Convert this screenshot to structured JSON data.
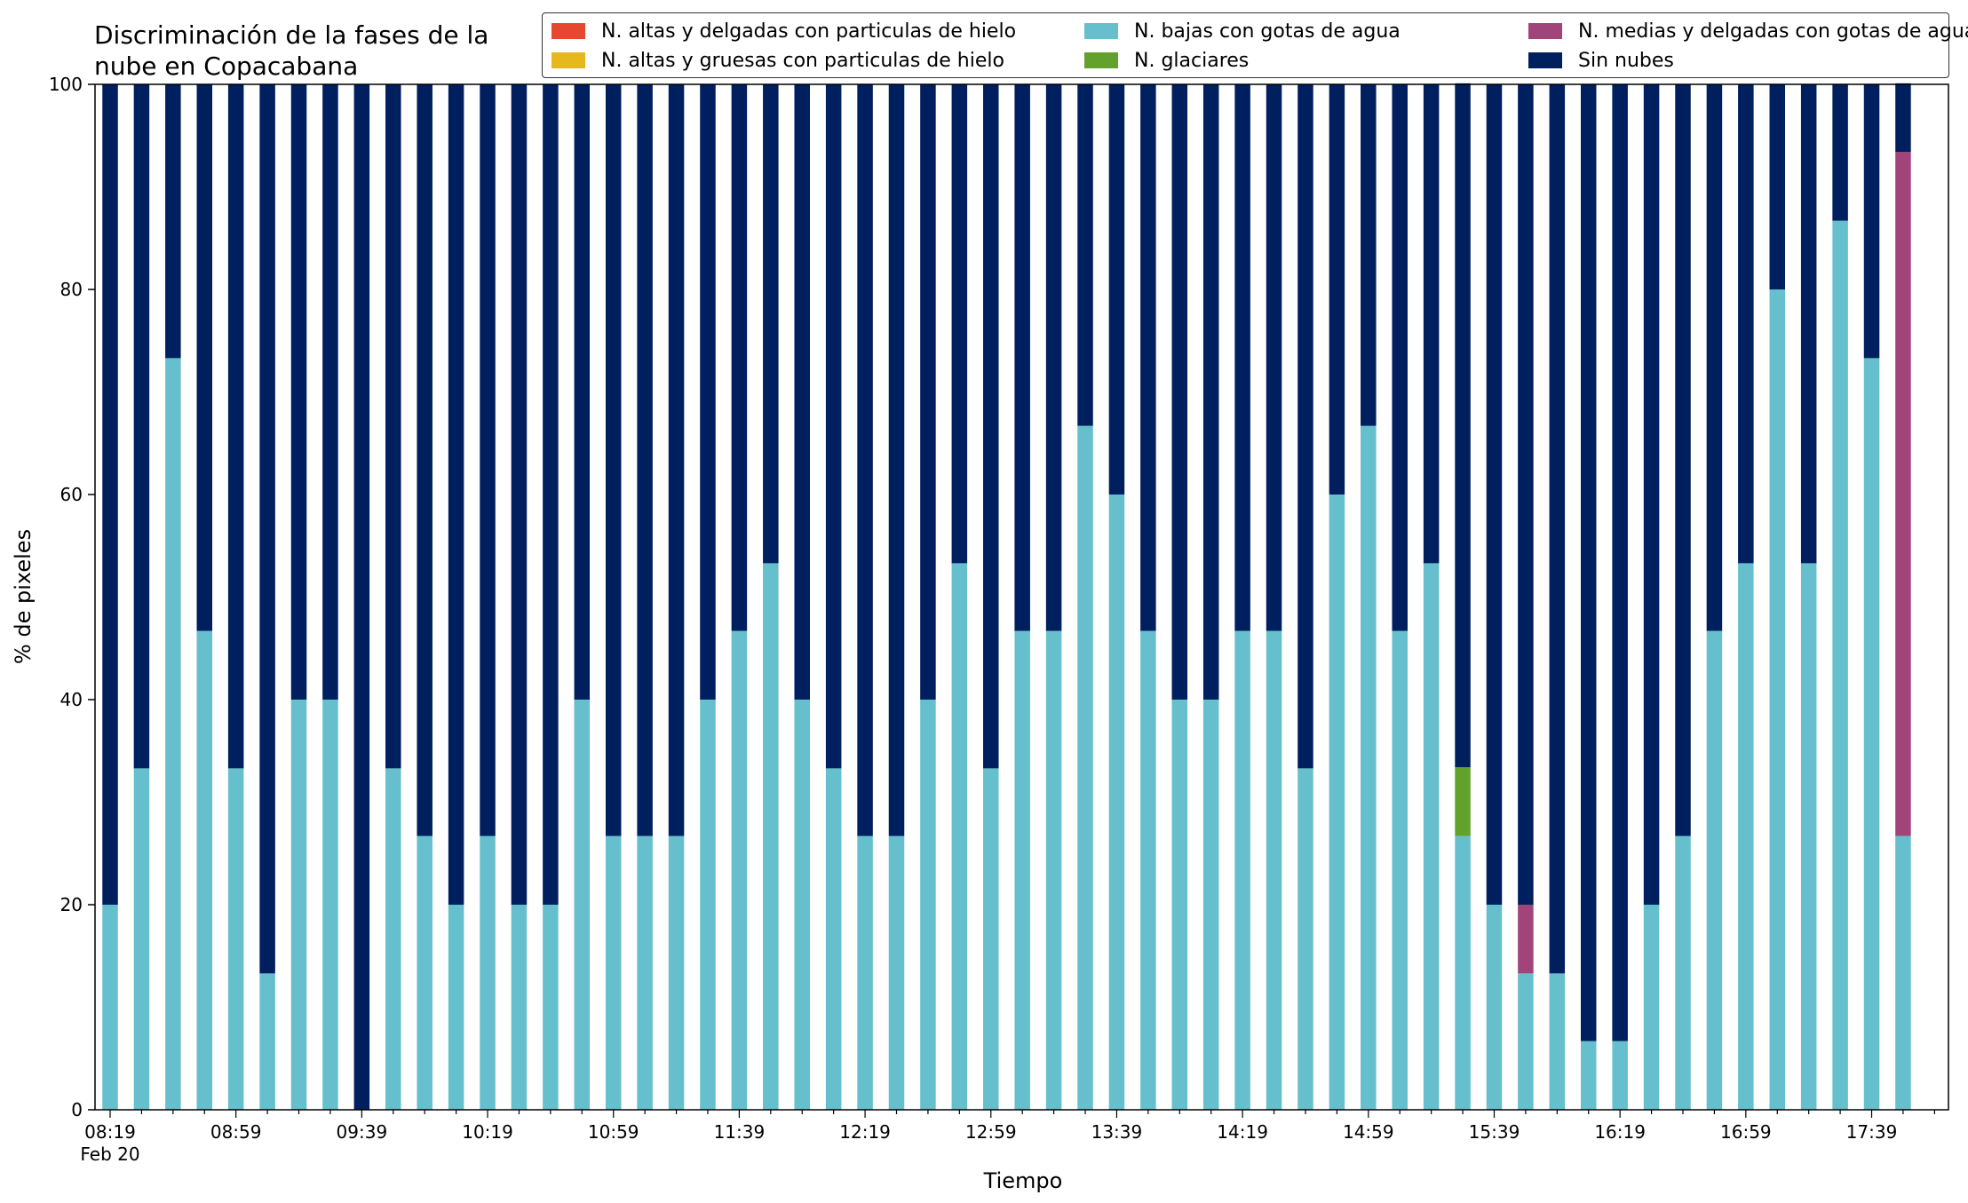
{
  "chart_data": {
    "type": "bar",
    "stacked": true,
    "title": "Discriminación de la fases de la\nnube en Copacabana",
    "xlabel": "Tiempo",
    "ylabel": "% de pixeles",
    "ylim": [
      0,
      100
    ],
    "yticks": [
      0,
      20,
      40,
      60,
      80,
      100
    ],
    "grid": false,
    "legend_position": "top-right",
    "xtick_labels": [
      {
        "index": 0,
        "label": "08:19",
        "sublabel": "Feb 20"
      },
      {
        "index": 4,
        "label": "08:59"
      },
      {
        "index": 8,
        "label": "09:39"
      },
      {
        "index": 12,
        "label": "10:19"
      },
      {
        "index": 16,
        "label": "10:59"
      },
      {
        "index": 20,
        "label": "11:39"
      },
      {
        "index": 24,
        "label": "12:19"
      },
      {
        "index": 28,
        "label": "12:59"
      },
      {
        "index": 32,
        "label": "13:39"
      },
      {
        "index": 36,
        "label": "14:19"
      },
      {
        "index": 40,
        "label": "14:59"
      },
      {
        "index": 44,
        "label": "15:39"
      },
      {
        "index": 48,
        "label": "16:19"
      },
      {
        "index": 52,
        "label": "16:59"
      },
      {
        "index": 56,
        "label": "17:39"
      }
    ],
    "series": [
      {
        "name": "N. altas y delgadas con particulas de hielo",
        "color": "#e8472f",
        "values": [
          0,
          0,
          0,
          0,
          0,
          0,
          0,
          0,
          0,
          0,
          0,
          0,
          0,
          0,
          0,
          0,
          0,
          0,
          0,
          0,
          0,
          0,
          0,
          0,
          0,
          0,
          0,
          0,
          0,
          0,
          0,
          0,
          0,
          0,
          0,
          0,
          0,
          0,
          0,
          0,
          0,
          0,
          0,
          0,
          0,
          0,
          0,
          0,
          0,
          0,
          0,
          0,
          0,
          0,
          0,
          0,
          0,
          0
        ]
      },
      {
        "name": "N. altas y gruesas con particulas de hielo",
        "color": "#e6b81e",
        "values": [
          0,
          0,
          0,
          0,
          0,
          0,
          0,
          0,
          0,
          0,
          0,
          0,
          0,
          0,
          0,
          0,
          0,
          0,
          0,
          0,
          0,
          0,
          0,
          0,
          0,
          0,
          0,
          0,
          0,
          0,
          0,
          0,
          0,
          0,
          0,
          0,
          0,
          0,
          0,
          0,
          0,
          0,
          0,
          0,
          0,
          0,
          0,
          0,
          0,
          0,
          0,
          0,
          0,
          0,
          0,
          0,
          0,
          0
        ]
      },
      {
        "name": "N. bajas con gotas de agua",
        "color": "#66bfcc",
        "values": [
          20,
          33.3,
          73.3,
          46.7,
          33.3,
          13.3,
          40,
          40,
          0,
          33.3,
          26.7,
          20,
          26.7,
          20,
          20,
          40,
          26.7,
          26.7,
          26.7,
          40,
          46.7,
          53.3,
          40,
          33.3,
          26.7,
          26.7,
          40,
          53.3,
          33.3,
          46.7,
          46.7,
          66.7,
          60,
          46.7,
          40,
          40,
          46.7,
          46.7,
          33.3,
          60,
          66.7,
          46.7,
          53.3,
          26.7,
          20,
          13.3,
          13.3,
          6.7,
          6.7,
          20,
          26.7,
          46.7,
          53.3,
          80,
          53.3,
          86.7,
          73.3,
          26.7
        ]
      },
      {
        "name": "N. glaciares",
        "color": "#62a12c",
        "values": [
          0,
          0,
          0,
          0,
          0,
          0,
          0,
          0,
          0,
          0,
          0,
          0,
          0,
          0,
          0,
          0,
          0,
          0,
          0,
          0,
          0,
          0,
          0,
          0,
          0,
          0,
          0,
          0,
          0,
          0,
          0,
          0,
          0,
          0,
          0,
          0,
          0,
          0,
          0,
          0,
          0,
          0,
          0,
          6.7,
          0,
          0,
          0,
          0,
          0,
          0,
          0,
          0,
          0,
          0,
          0,
          0,
          0,
          0
        ]
      },
      {
        "name": "N. medias y delgadas con gotas de agua",
        "color": "#a0447a",
        "values": [
          0,
          0,
          0,
          0,
          0,
          0,
          0,
          0,
          0,
          0,
          0,
          0,
          0,
          0,
          0,
          0,
          0,
          0,
          0,
          0,
          0,
          0,
          0,
          0,
          0,
          0,
          0,
          0,
          0,
          0,
          0,
          0,
          0,
          0,
          0,
          0,
          0,
          0,
          0,
          0,
          0,
          0,
          0,
          0,
          0,
          6.7,
          0,
          0,
          0,
          0,
          0,
          0,
          0,
          0,
          0,
          0,
          0,
          66.7
        ]
      },
      {
        "name": "Sin nubes",
        "color": "#001f5f",
        "values": [
          80,
          66.7,
          26.7,
          53.3,
          66.7,
          86.7,
          60,
          60,
          100,
          66.7,
          73.3,
          80,
          73.3,
          80,
          80,
          60,
          73.3,
          73.3,
          73.3,
          60,
          53.3,
          46.7,
          60,
          66.7,
          73.3,
          73.3,
          60,
          46.7,
          66.7,
          53.3,
          53.3,
          33.3,
          40,
          53.3,
          60,
          60,
          53.3,
          53.3,
          66.7,
          40,
          33.3,
          53.3,
          46.7,
          66.7,
          80,
          80,
          86.7,
          93.3,
          93.3,
          80,
          73.3,
          53.3,
          46.7,
          20,
          46.7,
          13.3,
          26.7,
          6.7
        ]
      }
    ]
  }
}
